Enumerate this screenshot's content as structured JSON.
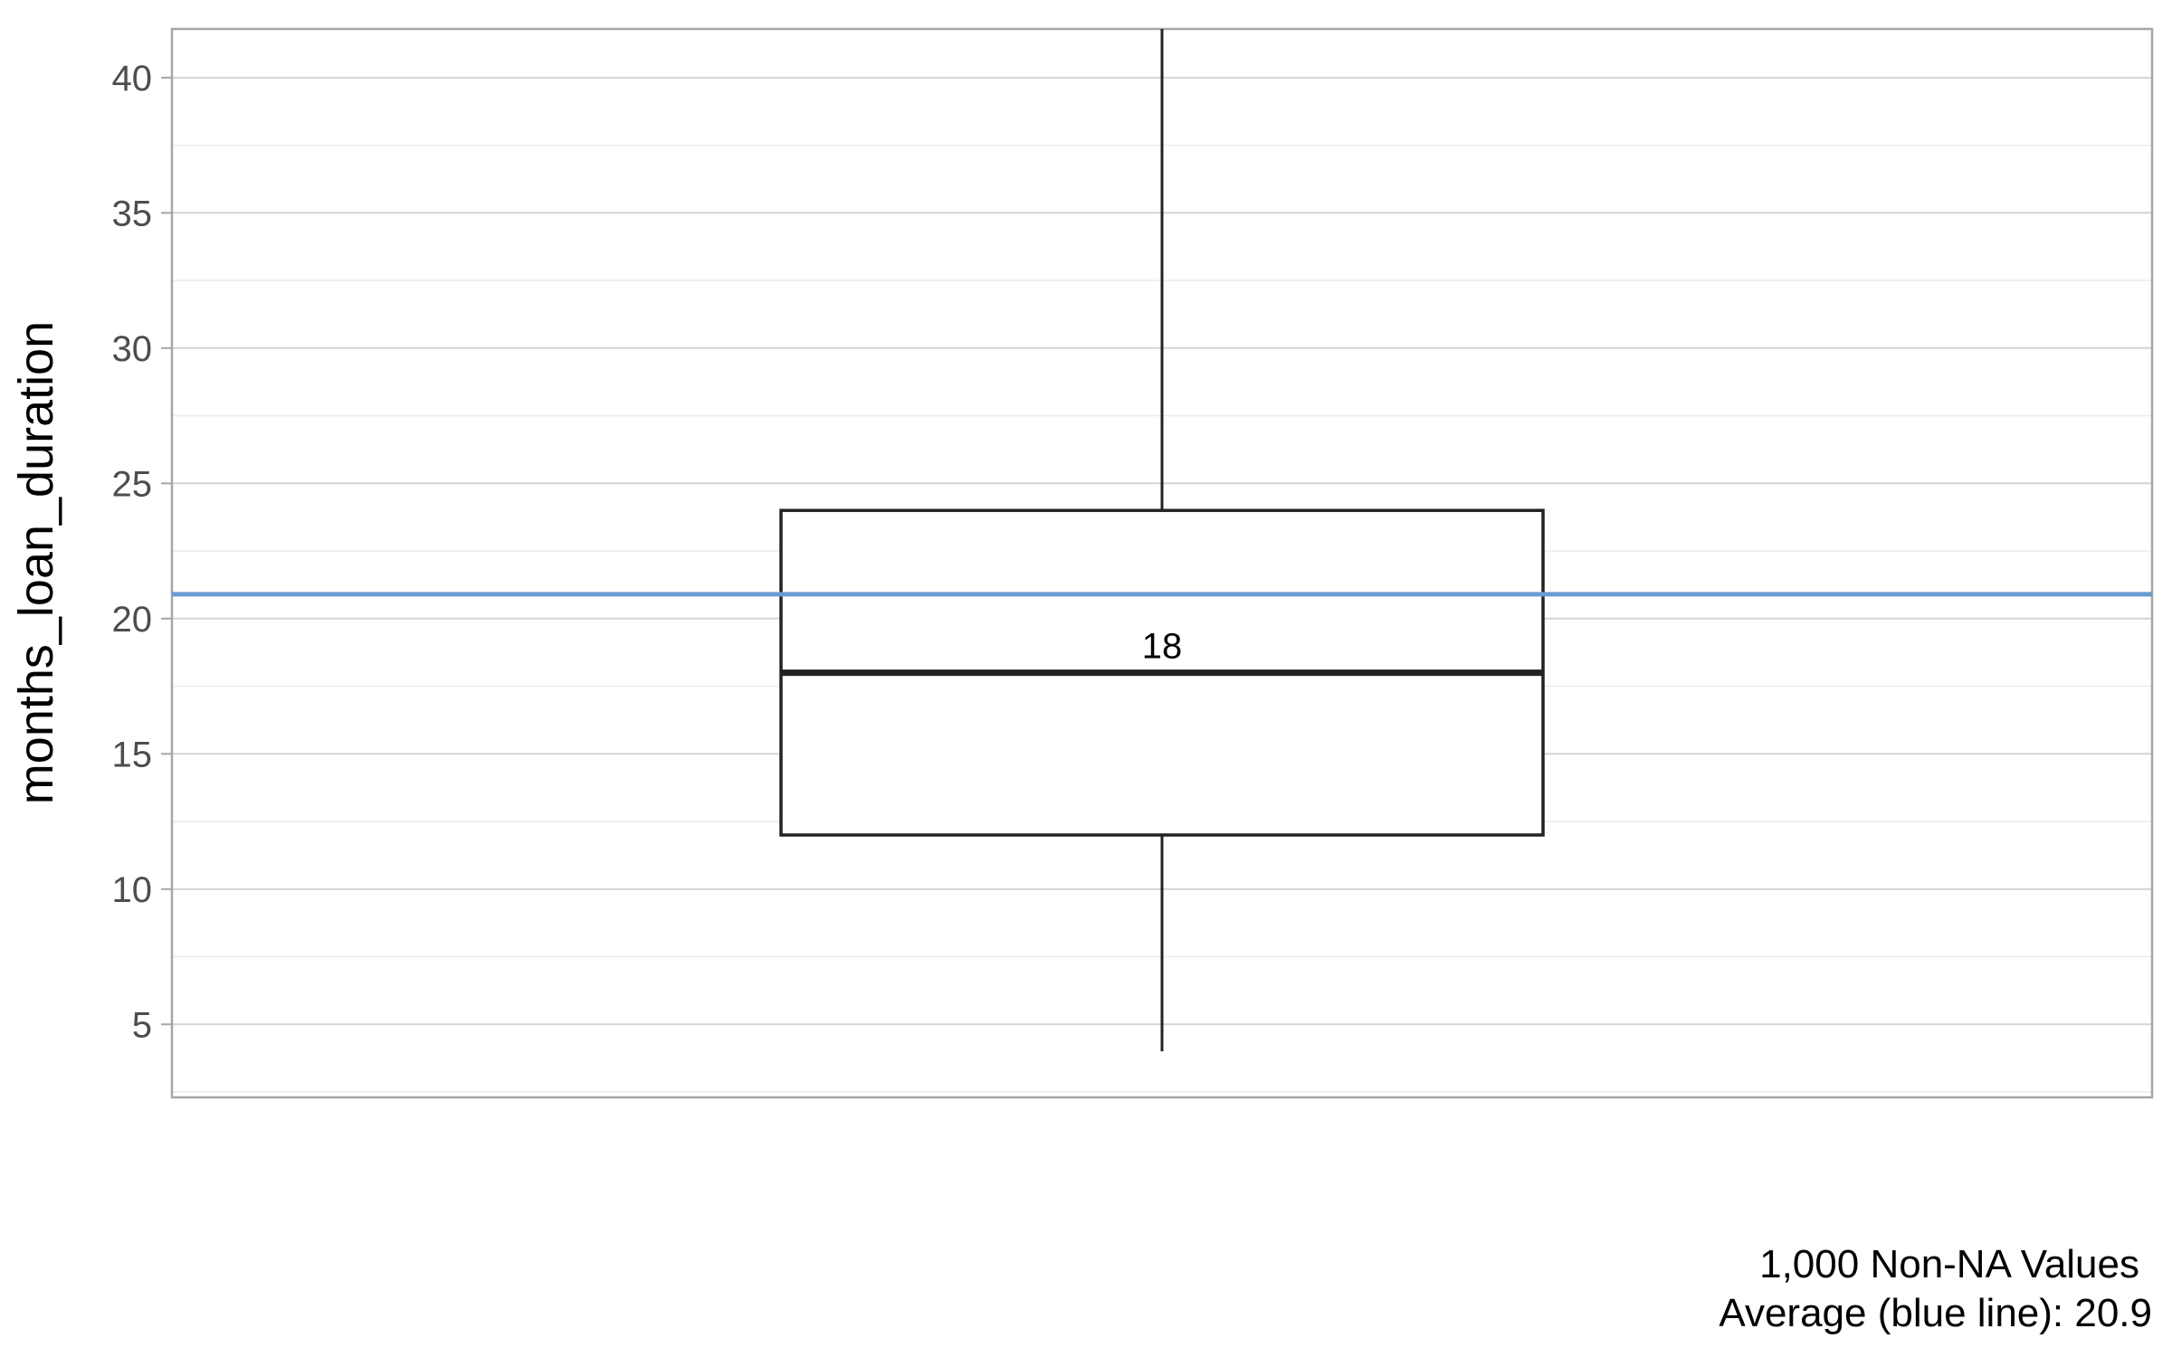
{
  "chart_data": {
    "type": "boxplot",
    "ylabel": "months_loan_duration",
    "xlabel": "",
    "ylim": [
      2.3,
      41.8
    ],
    "y_ticks": [
      5,
      10,
      15,
      20,
      25,
      30,
      35,
      40
    ],
    "y_tick_labels": [
      "5",
      "10",
      "15",
      "20",
      "25",
      "30",
      "35",
      "40"
    ],
    "box": {
      "whisker_low": 4,
      "q1": 12,
      "median": 18,
      "q3": 24,
      "whisker_high": 42
    },
    "median_label": "18",
    "mean": 20.9,
    "mean_line_color": "#6a9bd1",
    "grid": true,
    "caption_lines": [
      "1,000 Non-NA Values",
      "Average (blue line):  20.9"
    ]
  }
}
